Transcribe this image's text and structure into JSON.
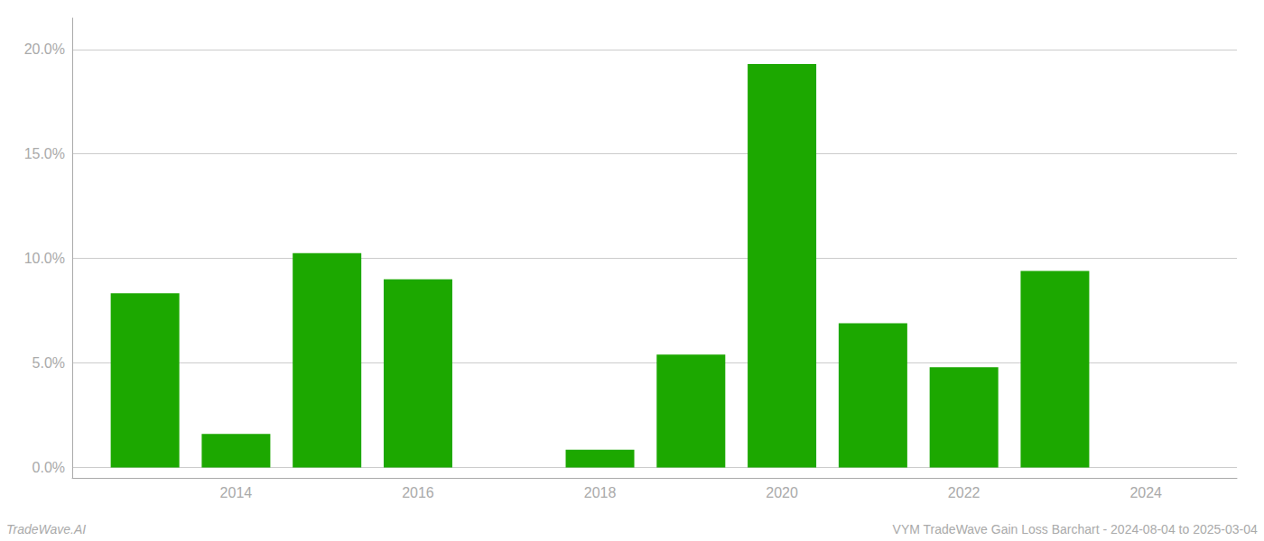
{
  "chart_data": {
    "type": "bar",
    "x": [
      2013,
      2014,
      2015,
      2016,
      2017,
      2018,
      2019,
      2020,
      2021,
      2022,
      2023
    ],
    "values": [
      0.0833,
      0.016,
      0.1025,
      0.09,
      0.0,
      0.0085,
      0.054,
      0.193,
      0.069,
      0.048,
      0.094
    ],
    "color": "#1ca800",
    "xlim": [
      2012.2,
      2025.0
    ],
    "xticks": [
      2014,
      2016,
      2018,
      2020,
      2022,
      2024
    ],
    "ylim": [
      -0.005,
      0.215
    ],
    "yticks": [
      {
        "value": 0.0,
        "label": "0.0%"
      },
      {
        "value": 0.05,
        "label": "5.0%"
      },
      {
        "value": 0.1,
        "label": "10.0%"
      },
      {
        "value": 0.15,
        "label": "15.0%"
      },
      {
        "value": 0.2,
        "label": "20.0%"
      }
    ],
    "grid": true,
    "annotations": [
      "TradeWave.AI",
      "VYM TradeWave Gain Loss Barchart - 2024-08-04 to 2025-03-04"
    ]
  }
}
